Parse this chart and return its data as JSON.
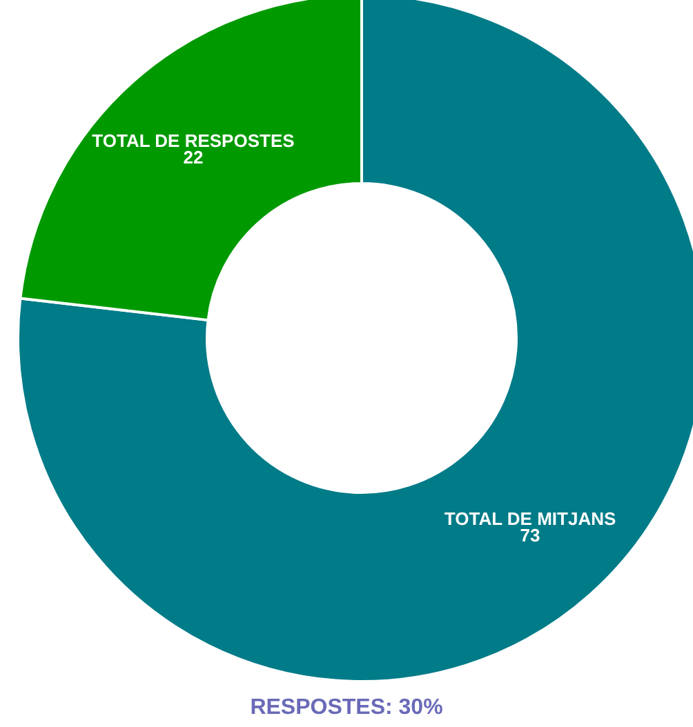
{
  "chart_data": {
    "type": "donut",
    "categories": [
      "TOTAL DE MITJANS",
      "TOTAL DE RESPOSTES"
    ],
    "values": [
      73,
      22
    ],
    "colors": [
      "#007b88",
      "#009a00"
    ],
    "data_labels": true,
    "legend": false,
    "annotations": [
      "RESPOSTES: 30%"
    ]
  }
}
